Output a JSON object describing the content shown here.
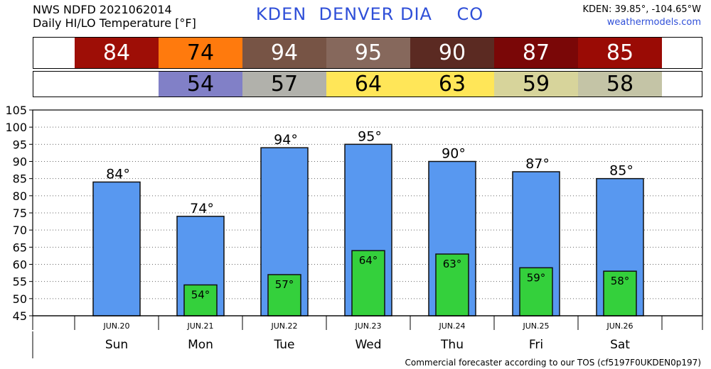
{
  "header": {
    "line1": "NWS NDFD 2021062014",
    "line2": "Daily HI/LO Temperature [°F]",
    "station": "KDEN  DENVER DIA    CO",
    "coords": "KDEN: 39.85°, -104.65°W",
    "site": "weathermodels.com"
  },
  "footer": {
    "text": "Commercial forecaster according to our TOS (cf5197F0UKDEN0p197)"
  },
  "strips": {
    "hi": [
      {
        "value": "84",
        "color": "#9e0e06",
        "text_color": "#ffffff"
      },
      {
        "value": "74",
        "color": "#ff7a0d",
        "text_color": "#000000"
      },
      {
        "value": "94",
        "color": "#775445",
        "text_color": "#ffffff"
      },
      {
        "value": "95",
        "color": "#86685c",
        "text_color": "#ffffff"
      },
      {
        "value": "90",
        "color": "#5b2a22",
        "text_color": "#ffffff"
      },
      {
        "value": "87",
        "color": "#7a0707",
        "text_color": "#ffffff"
      },
      {
        "value": "85",
        "color": "#9a0b05",
        "text_color": "#ffffff"
      }
    ],
    "lo": [
      {
        "value": "",
        "color": "#ffffff",
        "text_color": "#000000"
      },
      {
        "value": "54",
        "color": "#8180c7",
        "text_color": "#000000"
      },
      {
        "value": "57",
        "color": "#b1b1ab",
        "text_color": "#000000"
      },
      {
        "value": "64",
        "color": "#ffe658",
        "text_color": "#000000"
      },
      {
        "value": "63",
        "color": "#ffe658",
        "text_color": "#000000"
      },
      {
        "value": "59",
        "color": "#d7d49b",
        "text_color": "#000000"
      },
      {
        "value": "58",
        "color": "#c4c4a6",
        "text_color": "#000000"
      }
    ]
  },
  "chart_data": {
    "type": "bar",
    "categories": [
      "Sun",
      "Mon",
      "Tue",
      "Wed",
      "Thu",
      "Fri",
      "Sat"
    ],
    "dates": [
      "JUN.20",
      "JUN.21",
      "JUN.22",
      "JUN.23",
      "JUN.24",
      "JUN.25",
      "JUN.26"
    ],
    "series": [
      {
        "values": [
          84,
          74,
          94,
          95,
          90,
          87,
          85
        ],
        "color": "#5898f0"
      },
      {
        "values": [
          null,
          54,
          57,
          64,
          63,
          59,
          58
        ],
        "color": "#34d03c"
      }
    ],
    "hi_labels": [
      "84°",
      "74°",
      "94°",
      "95°",
      "90°",
      "87°",
      "85°"
    ],
    "lo_labels": [
      "",
      "54°",
      "57°",
      "64°",
      "63°",
      "59°",
      "58°"
    ],
    "ylim": [
      45,
      105
    ],
    "yticks": [
      45,
      50,
      55,
      60,
      65,
      70,
      75,
      80,
      85,
      90,
      95,
      100,
      105
    ],
    "grid": true
  }
}
